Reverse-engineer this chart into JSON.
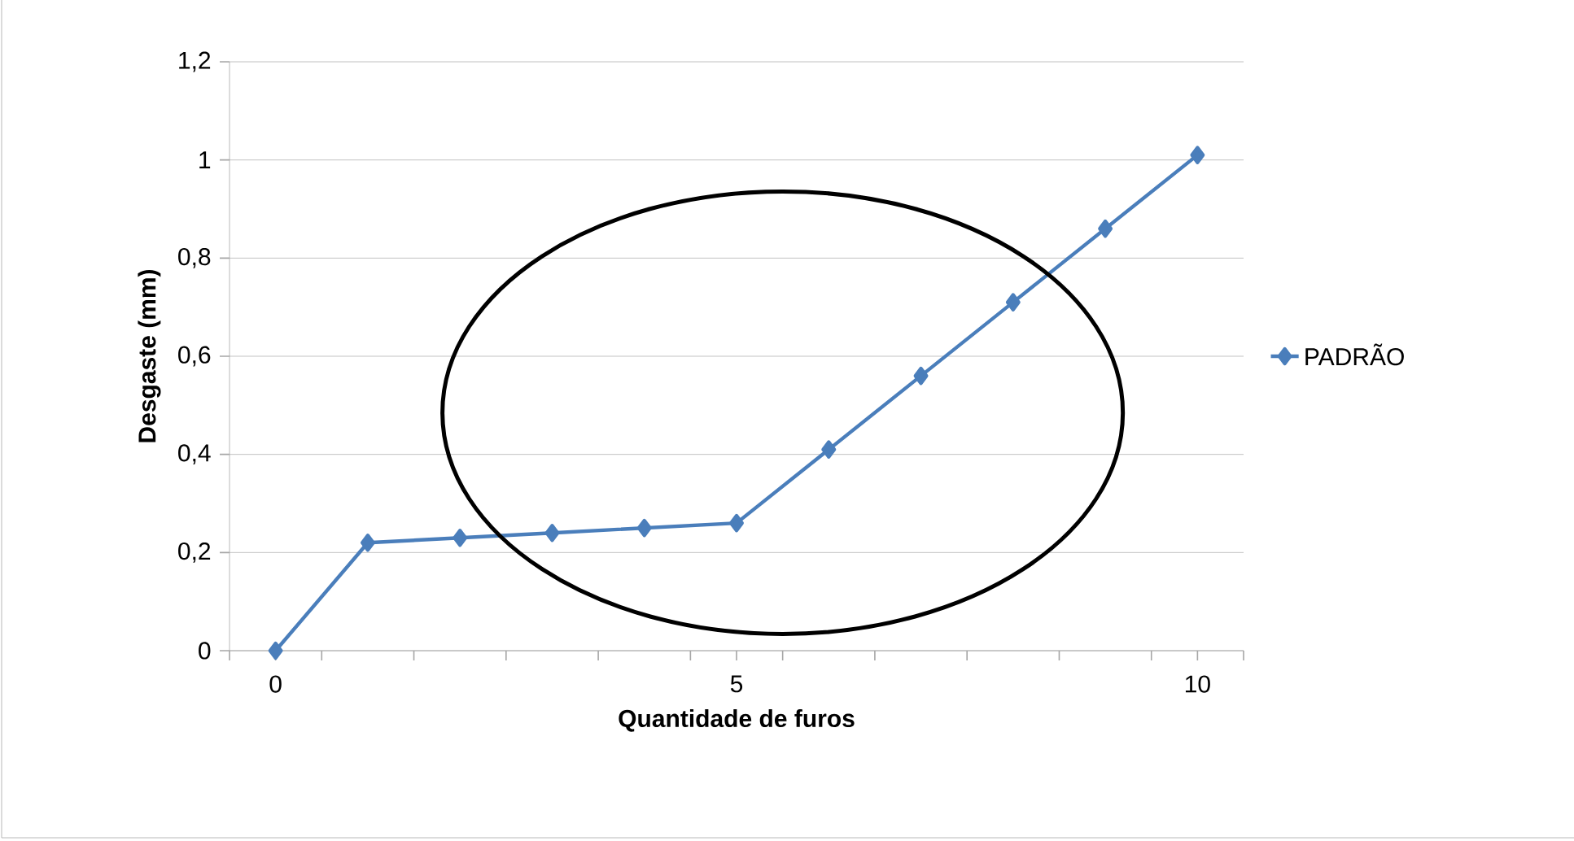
{
  "chart_data": {
    "type": "line",
    "x": [
      0,
      1,
      2,
      3,
      4,
      5,
      6,
      7,
      8,
      9,
      10
    ],
    "series": [
      {
        "name": "PADRÃO",
        "color": "#4a7ebb",
        "values": [
          0,
          0.22,
          0.23,
          0.24,
          0.25,
          0.26,
          0.41,
          0.56,
          0.71,
          0.86,
          1.01
        ]
      }
    ],
    "xlabel": "Quantidade de furos",
    "ylabel": "Desgaste (mm)",
    "xlim": [
      -0.5,
      10.5
    ],
    "xticks": [
      {
        "value": -0.5,
        "label": null
      },
      0,
      {
        "value": 0.5,
        "label": null
      },
      {
        "value": 1.5,
        "label": null
      },
      {
        "value": 2.5,
        "label": null
      },
      {
        "value": 3.5,
        "label": null
      },
      {
        "value": 4.5,
        "label": null
      },
      5,
      {
        "value": 5.5,
        "label": null
      },
      {
        "value": 6.5,
        "label": null
      },
      {
        "value": 7.5,
        "label": null
      },
      {
        "value": 8.5,
        "label": null
      },
      {
        "value": 9.5,
        "label": null
      },
      10,
      {
        "value": 10.5,
        "label": null
      }
    ],
    "ylim": [
      0,
      1.2
    ],
    "yticks": [
      {
        "value": 0,
        "label": "0"
      },
      {
        "value": 0.2,
        "label": "0,2"
      },
      {
        "value": 0.4,
        "label": "0,4"
      },
      {
        "value": 0.6,
        "label": "0,6"
      },
      {
        "value": 0.8,
        "label": "0,8"
      },
      {
        "value": 1,
        "label": "1"
      },
      {
        "value": 1.2,
        "label": "1,2"
      }
    ],
    "grid": "y",
    "legend": "right",
    "marker": "diamond",
    "line_style": "solid"
  }
}
